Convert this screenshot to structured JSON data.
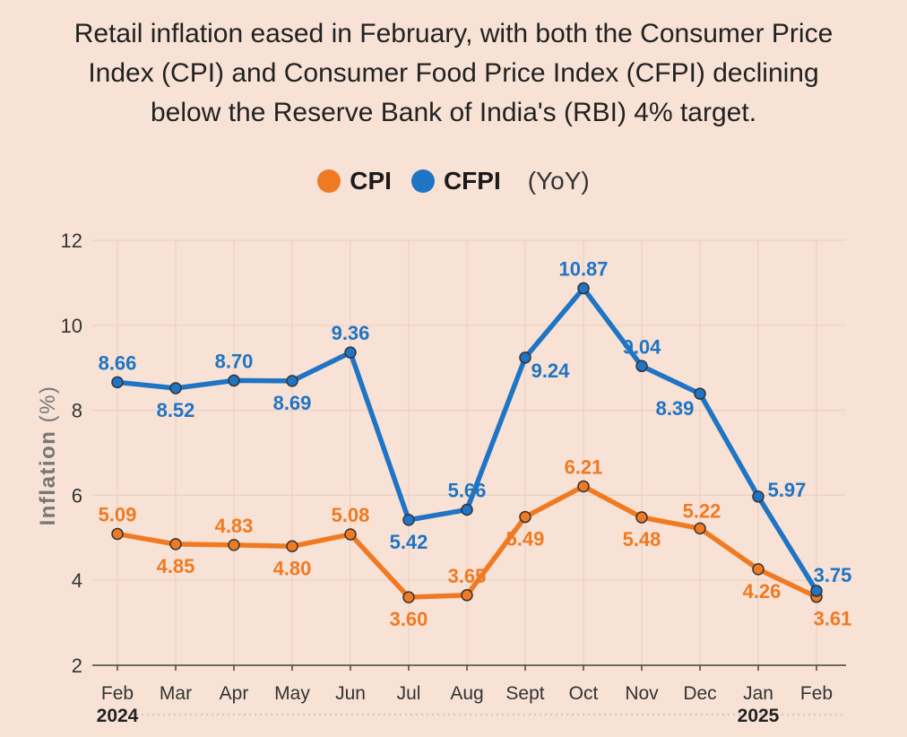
{
  "title_lines": [
    "Retail inflation eased in February, with both the Consumer Price",
    "Index (CPI) and Consumer Food Price Index (CFPI) declining",
    "below the Reserve Bank of India's (RBI) 4% target."
  ],
  "legend": {
    "note": "(YoY)"
  },
  "chart_data": {
    "type": "line",
    "ylabel": "Inflation",
    "ylabel_unit": "(%)",
    "ylim": [
      2,
      12
    ],
    "yticks": [
      2,
      4,
      6,
      8,
      10,
      12
    ],
    "grid": "vertical",
    "legend_position": "top",
    "categories": [
      "Feb",
      "Mar",
      "Apr",
      "May",
      "Jun",
      "Jul",
      "Aug",
      "Sept",
      "Oct",
      "Nov",
      "Dec",
      "Jan",
      "Feb"
    ],
    "year_labels": [
      {
        "label": "2024",
        "index": 0
      },
      {
        "label": "2025",
        "index": 11
      }
    ],
    "series": [
      {
        "name": "CPI",
        "color": "#f07a22",
        "values": [
          5.09,
          4.85,
          4.83,
          4.8,
          5.08,
          3.6,
          3.65,
          5.49,
          6.21,
          5.48,
          5.22,
          4.26,
          3.61
        ],
        "labels": [
          "5.09",
          "4.85",
          "4.83",
          "4.80",
          "5.08",
          "3.60",
          "3.65",
          "5.49",
          "6.21",
          "5.48",
          "5.22",
          "4.26",
          "3.61"
        ]
      },
      {
        "name": "CFPI",
        "color": "#1f74c4",
        "values": [
          8.66,
          8.52,
          8.7,
          8.69,
          9.36,
          5.42,
          5.66,
          9.24,
          10.87,
          9.04,
          8.39,
          5.97,
          3.75
        ],
        "labels": [
          "8.66",
          "8.52",
          "8.70",
          "8.69",
          "9.36",
          "5.42",
          "5.66",
          "9.24",
          "10.87",
          "9.04",
          "8.39",
          "5.97",
          "3.75"
        ]
      }
    ]
  }
}
